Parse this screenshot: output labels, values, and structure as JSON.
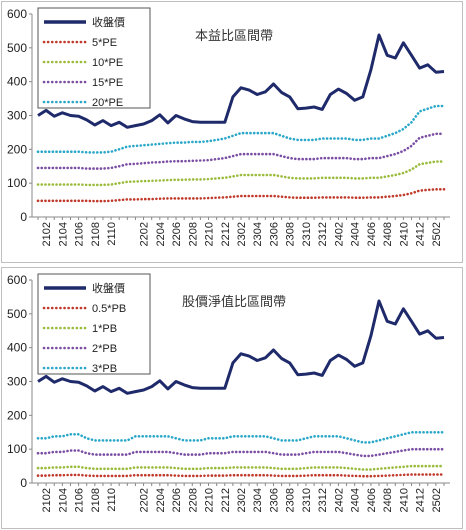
{
  "chart_data": [
    {
      "type": "line",
      "title": "本益比區間帶",
      "xlabel": "",
      "ylabel": "",
      "ylim": [
        0,
        600
      ],
      "yticks": [
        0,
        100,
        200,
        300,
        400,
        500,
        600
      ],
      "grid": false,
      "legend": "top-left",
      "x_tick_labels": [
        "2102",
        "2104",
        "2106",
        "2108",
        "2110",
        "2202",
        "2204",
        "2206",
        "2208",
        "2210",
        "2212",
        "2302",
        "2304",
        "2306",
        "2308",
        "2310",
        "2312",
        "2402",
        "2404",
        "2406",
        "2408",
        "2410",
        "2412",
        "2502"
      ],
      "x": [
        "2101",
        "2102",
        "2103",
        "2104",
        "2105",
        "2106",
        "2107",
        "2108",
        "2109",
        "2110",
        "2111",
        "2112",
        "2201",
        "2202",
        "2203",
        "2204",
        "2205",
        "2206",
        "2207",
        "2208",
        "2209",
        "2210",
        "2211",
        "2212",
        "2301",
        "2302",
        "2303",
        "2304",
        "2305",
        "2306",
        "2307",
        "2308",
        "2309",
        "2310",
        "2311",
        "2312",
        "2401",
        "2402",
        "2403",
        "2404",
        "2405",
        "2406",
        "2407",
        "2408",
        "2409",
        "2410",
        "2411",
        "2412",
        "2501",
        "2502",
        "2503"
      ],
      "series": [
        {
          "name": "收盤價",
          "color": "#1f2a6b",
          "style": "solid",
          "values": [
            300,
            315,
            298,
            308,
            300,
            298,
            287,
            272,
            285,
            270,
            280,
            265,
            270,
            275,
            285,
            302,
            278,
            300,
            290,
            282,
            280,
            280,
            280,
            280,
            355,
            382,
            375,
            362,
            370,
            393,
            368,
            355,
            320,
            322,
            325,
            318,
            362,
            378,
            365,
            345,
            355,
            435,
            538,
            478,
            470,
            515,
            478,
            440,
            450,
            428,
            430
          ]
        },
        {
          "name": "5*PE",
          "color": "#c0392b",
          "style": "dotted",
          "values": [
            48,
            48,
            48,
            48,
            48,
            48,
            48,
            47,
            47,
            48,
            50,
            52,
            52,
            53,
            53,
            54,
            55,
            55,
            55,
            55,
            55,
            56,
            57,
            58,
            60,
            62,
            62,
            62,
            62,
            62,
            60,
            58,
            57,
            57,
            57,
            58,
            58,
            58,
            58,
            57,
            57,
            58,
            58,
            60,
            62,
            65,
            70,
            78,
            80,
            82,
            82
          ]
        },
        {
          "name": "10*PE",
          "color": "#9bbb3c",
          "style": "dotted",
          "values": [
            96,
            96,
            96,
            96,
            96,
            96,
            95,
            95,
            95,
            96,
            100,
            104,
            105,
            106,
            107,
            108,
            109,
            110,
            110,
            111,
            111,
            112,
            114,
            116,
            120,
            124,
            124,
            124,
            124,
            124,
            120,
            116,
            114,
            114,
            114,
            116,
            116,
            116,
            116,
            114,
            114,
            116,
            116,
            120,
            124,
            130,
            140,
            156,
            160,
            164,
            164
          ]
        },
        {
          "name": "15*PE",
          "color": "#7b4ea3",
          "style": "dotted",
          "values": [
            145,
            145,
            145,
            145,
            145,
            145,
            143,
            143,
            143,
            145,
            150,
            156,
            157,
            159,
            161,
            162,
            164,
            165,
            165,
            166,
            167,
            168,
            171,
            174,
            180,
            186,
            186,
            186,
            186,
            186,
            180,
            174,
            171,
            171,
            171,
            174,
            174,
            174,
            174,
            171,
            171,
            174,
            174,
            180,
            186,
            195,
            210,
            234,
            240,
            246,
            246
          ]
        },
        {
          "name": "20*PE",
          "color": "#2aa7c9",
          "style": "dotted",
          "values": [
            193,
            193,
            193,
            193,
            193,
            193,
            191,
            191,
            191,
            193,
            200,
            208,
            210,
            212,
            214,
            216,
            218,
            220,
            220,
            222,
            222,
            224,
            228,
            232,
            240,
            248,
            248,
            248,
            248,
            248,
            240,
            232,
            228,
            228,
            228,
            232,
            232,
            232,
            232,
            228,
            228,
            232,
            232,
            240,
            248,
            260,
            280,
            312,
            320,
            328,
            328
          ]
        }
      ]
    },
    {
      "type": "line",
      "title": "股價淨值比區間帶",
      "xlabel": "",
      "ylabel": "",
      "ylim": [
        0,
        600
      ],
      "yticks": [
        0,
        100,
        200,
        300,
        400,
        500,
        600
      ],
      "grid": false,
      "legend": "top-left",
      "x_tick_labels": [
        "2102",
        "2104",
        "2106",
        "2108",
        "2110",
        "2202",
        "2204",
        "2206",
        "2208",
        "2210",
        "2212",
        "2302",
        "2304",
        "2306",
        "2308",
        "2310",
        "2312",
        "2402",
        "2404",
        "2406",
        "2408",
        "2410",
        "2412",
        "2502"
      ],
      "x": [
        "2101",
        "2102",
        "2103",
        "2104",
        "2105",
        "2106",
        "2107",
        "2108",
        "2109",
        "2110",
        "2111",
        "2112",
        "2201",
        "2202",
        "2203",
        "2204",
        "2205",
        "2206",
        "2207",
        "2208",
        "2209",
        "2210",
        "2211",
        "2212",
        "2301",
        "2302",
        "2303",
        "2304",
        "2305",
        "2306",
        "2307",
        "2308",
        "2309",
        "2310",
        "2311",
        "2312",
        "2401",
        "2402",
        "2403",
        "2404",
        "2405",
        "2406",
        "2407",
        "2408",
        "2409",
        "2410",
        "2411",
        "2412",
        "2501",
        "2502",
        "2503"
      ],
      "series": [
        {
          "name": "收盤價",
          "color": "#1f2a6b",
          "style": "solid",
          "values": [
            300,
            315,
            298,
            308,
            300,
            298,
            287,
            272,
            285,
            270,
            280,
            265,
            270,
            275,
            285,
            302,
            278,
            300,
            290,
            282,
            280,
            280,
            280,
            280,
            355,
            382,
            375,
            362,
            370,
            393,
            368,
            355,
            320,
            322,
            325,
            318,
            362,
            378,
            365,
            345,
            355,
            435,
            538,
            478,
            470,
            515,
            478,
            440,
            450,
            428,
            430
          ]
        },
        {
          "name": "0.5*PB",
          "color": "#c0392b",
          "style": "dotted",
          "values": [
            22,
            22,
            23,
            23,
            24,
            24,
            22,
            21,
            21,
            21,
            21,
            21,
            23,
            23,
            23,
            23,
            23,
            22,
            21,
            21,
            21,
            22,
            22,
            22,
            23,
            23,
            23,
            23,
            23,
            22,
            21,
            21,
            21,
            22,
            23,
            23,
            23,
            23,
            22,
            21,
            20,
            20,
            21,
            22,
            23,
            24,
            25,
            25,
            25,
            25,
            25
          ]
        },
        {
          "name": "1*PB",
          "color": "#9bbb3c",
          "style": "dotted",
          "values": [
            44,
            44,
            46,
            46,
            48,
            48,
            44,
            42,
            42,
            42,
            42,
            42,
            46,
            46,
            46,
            46,
            46,
            44,
            42,
            42,
            42,
            44,
            44,
            44,
            46,
            46,
            46,
            46,
            46,
            44,
            42,
            42,
            42,
            44,
            46,
            46,
            46,
            46,
            44,
            42,
            40,
            40,
            42,
            44,
            46,
            48,
            50,
            50,
            50,
            50,
            50
          ]
        },
        {
          "name": "2*PB",
          "color": "#7b4ea3",
          "style": "dotted",
          "values": [
            88,
            88,
            92,
            92,
            96,
            96,
            88,
            84,
            84,
            84,
            84,
            84,
            92,
            92,
            92,
            92,
            92,
            88,
            84,
            84,
            84,
            88,
            88,
            88,
            92,
            92,
            92,
            92,
            92,
            88,
            84,
            84,
            84,
            88,
            92,
            92,
            92,
            92,
            88,
            84,
            80,
            80,
            84,
            88,
            92,
            96,
            100,
            100,
            100,
            100,
            100
          ]
        },
        {
          "name": "3*PB",
          "color": "#2aa7c9",
          "style": "dotted",
          "values": [
            132,
            132,
            138,
            138,
            144,
            144,
            132,
            126,
            126,
            126,
            126,
            126,
            138,
            138,
            138,
            138,
            138,
            132,
            126,
            126,
            126,
            132,
            132,
            132,
            138,
            138,
            138,
            138,
            138,
            132,
            126,
            126,
            126,
            132,
            138,
            138,
            138,
            138,
            132,
            126,
            120,
            120,
            126,
            132,
            138,
            144,
            150,
            150,
            150,
            150,
            150
          ]
        }
      ]
    }
  ]
}
